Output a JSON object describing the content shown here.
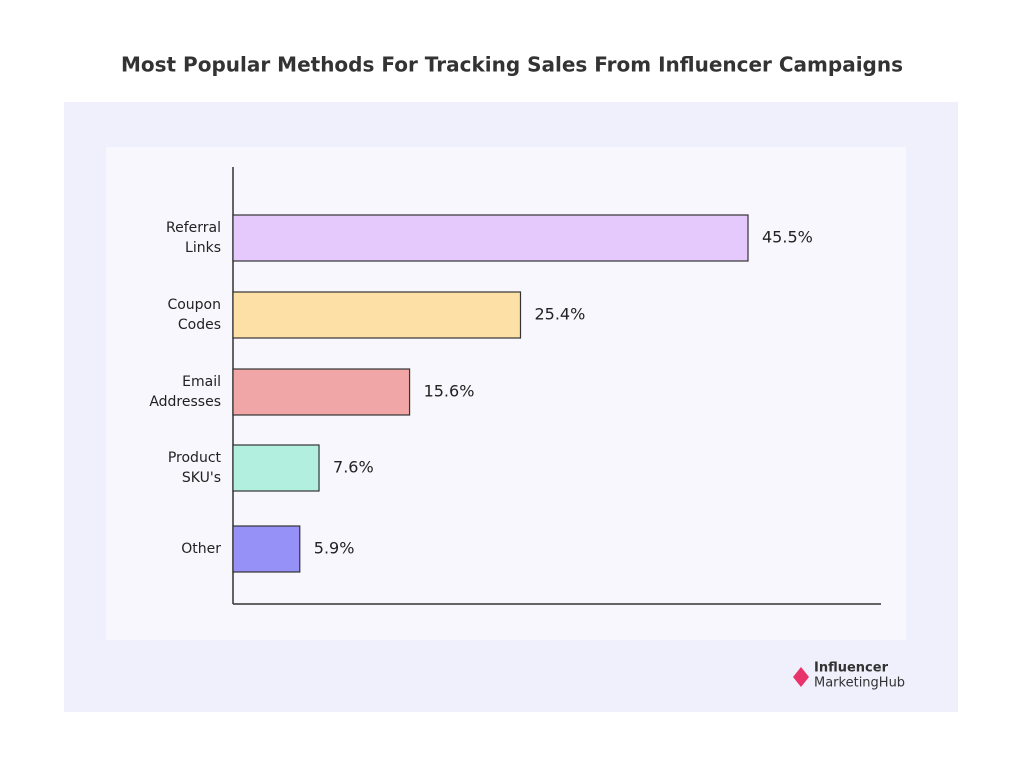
{
  "chart_data": {
    "type": "bar",
    "orientation": "horizontal",
    "title": "Most Popular Methods For Tracking Sales From Influencer Campaigns",
    "categories": [
      "Referral Links",
      "Coupon Codes",
      "Email Addresses",
      "Product SKU's",
      "Other"
    ],
    "values": [
      45.5,
      25.4,
      15.6,
      7.6,
      5.9
    ],
    "value_labels": [
      "45.5%",
      "25.4%",
      "15.6%",
      "7.6%",
      "5.9%"
    ],
    "colors": [
      "#e6c9fc",
      "#fde0a6",
      "#f0a6a6",
      "#b3efde",
      "#9591f7"
    ]
  },
  "logo": {
    "line1": "Influencer",
    "line2": "MarketingHub"
  }
}
